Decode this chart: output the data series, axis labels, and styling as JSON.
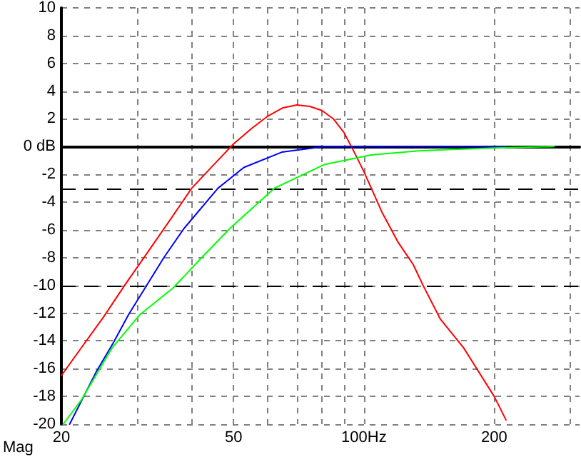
{
  "chart_data": {
    "type": "line",
    "xlabel": "Mag",
    "log": "x",
    "grid": true,
    "marker": "none",
    "line_style": "solid",
    "xlim": [
      20,
      315
    ],
    "xticks": [
      20,
      {
        "value": 30,
        "label": null
      },
      {
        "value": 40,
        "label": null
      },
      50,
      {
        "value": 60,
        "label": null
      },
      {
        "value": 70,
        "label": null
      },
      {
        "value": 80,
        "label": null
      },
      {
        "value": 90,
        "label": null
      },
      {
        "value": 100,
        "label": "100Hz"
      },
      200,
      {
        "value": 300,
        "label": null
      }
    ],
    "ylim": [
      -20,
      10
    ],
    "yticks": [
      -20,
      -18,
      -16,
      -14,
      -12,
      -10,
      -8,
      -6,
      -4,
      -2,
      {
        "value": 0,
        "label": "0 dB"
      },
      2,
      4,
      6,
      8,
      10
    ],
    "ref_lines": [
      {
        "axis": "y",
        "value": 0,
        "color": "#000000",
        "line_style": "solid"
      },
      {
        "axis": "y",
        "value": -3,
        "color": "#000000",
        "line_style": "dashed"
      },
      {
        "axis": "y",
        "value": -10,
        "color": "#000000",
        "line_style": "dashed"
      }
    ],
    "series": [
      {
        "color": "#ff0000",
        "x": [
          20,
          22,
          25,
          28,
          32,
          36,
          40,
          45,
          50,
          55,
          60,
          65,
          70,
          75,
          80,
          85,
          90,
          95,
          100,
          110,
          120,
          130,
          137,
          150,
          170,
          200,
          213
        ],
        "values": [
          -16.5,
          -14.7,
          -12.3,
          -10,
          -7.4,
          -5.1,
          -3,
          -1.3,
          0.2,
          1.3,
          2.2,
          2.8,
          3,
          2.9,
          2.6,
          2,
          1,
          -0.4,
          -1.8,
          -4.7,
          -6.9,
          -8.5,
          -10,
          -12.4,
          -14.5,
          -18,
          -19.7
        ]
      },
      {
        "color": "#0000ff",
        "x": [
          20.9,
          24.1,
          26.3,
          28.6,
          31.2,
          34.5,
          38.4,
          46,
          52.8,
          64.6,
          81,
          100,
          150,
          213
        ],
        "values": [
          -20,
          -16.2,
          -14.2,
          -12.1,
          -10.2,
          -8,
          -5.9,
          -3,
          -1.5,
          -0.4,
          0,
          0,
          0,
          0
        ]
      },
      {
        "color": "#00ff00",
        "x": [
          20.2,
          22.2,
          26.2,
          30.4,
          36.2,
          42.2,
          49,
          62.1,
          80.9,
          103.9,
          133.7,
          160,
          200,
          275
        ],
        "values": [
          -20,
          -18.3,
          -14.5,
          -12.1,
          -10.2,
          -8,
          -5.9,
          -3,
          -1.3,
          -0.6,
          -0.3,
          -0.2,
          -0.1,
          0
        ]
      }
    ]
  }
}
